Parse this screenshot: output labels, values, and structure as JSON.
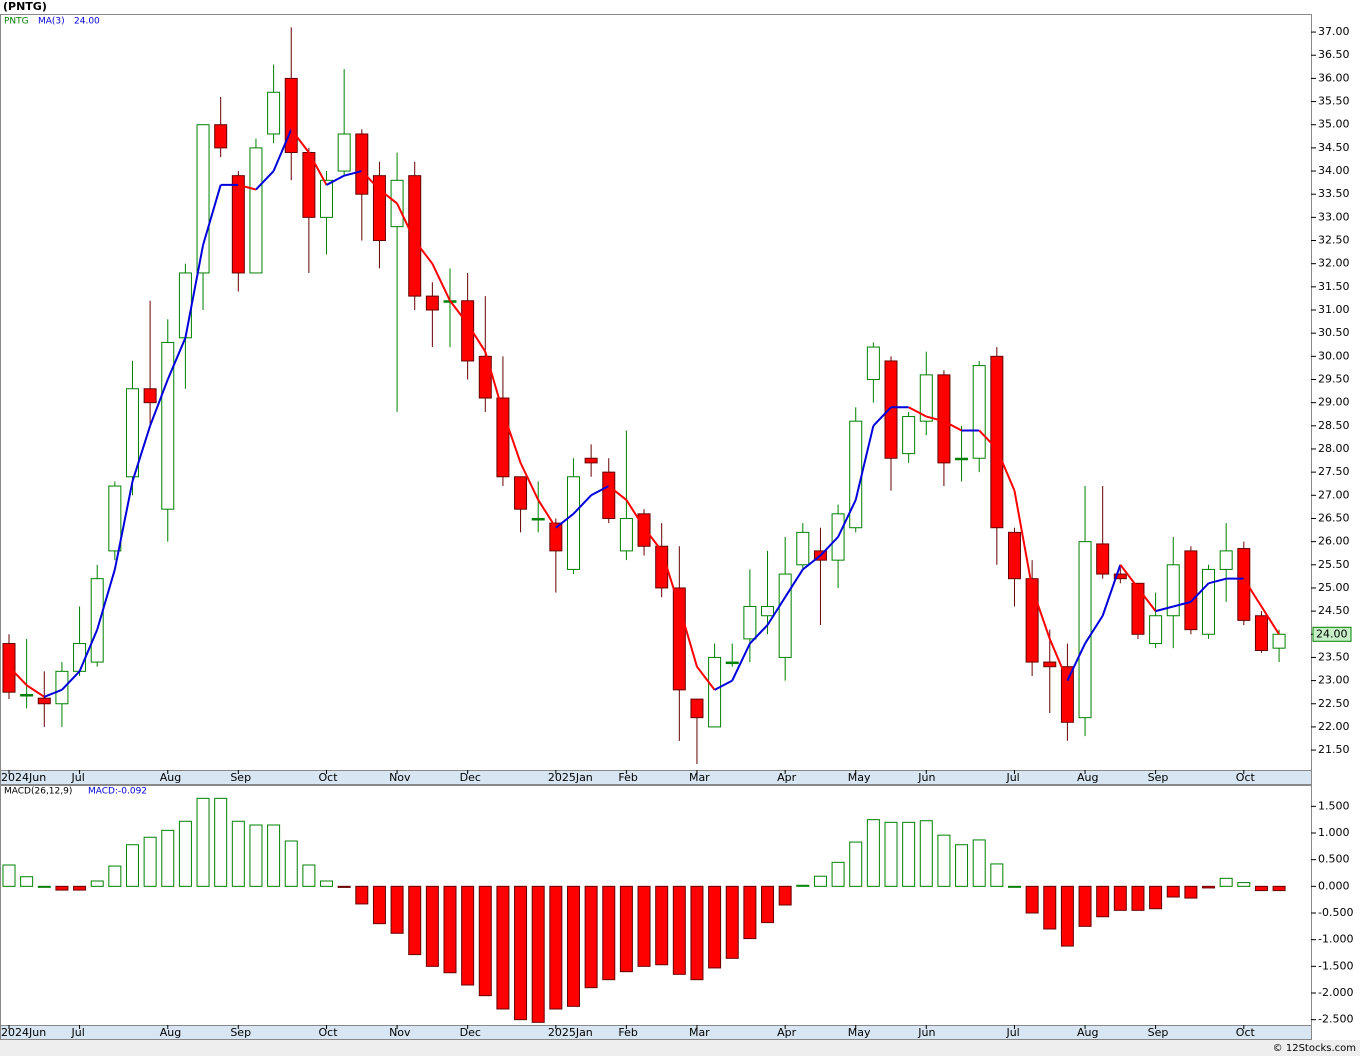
{
  "chart_data": [
    {
      "type": "candlestick",
      "title": "(PNTG)",
      "symbol": "PNTG",
      "ma_label": "MA(3)",
      "last_price": {
        "value": 24,
        "label": "24.00"
      },
      "categories": [
        "2024Jun",
        null,
        null,
        null,
        "Jul",
        null,
        null,
        null,
        null,
        "Aug",
        null,
        null,
        null,
        "Sep",
        null,
        null,
        null,
        null,
        "Oct",
        null,
        null,
        null,
        "Nov",
        null,
        null,
        null,
        "Dec",
        null,
        null,
        null,
        null,
        "2025Jan",
        null,
        null,
        null,
        "Feb",
        null,
        null,
        null,
        "Mar",
        null,
        null,
        null,
        null,
        "Apr",
        null,
        null,
        null,
        "May",
        null,
        null,
        null,
        "Jun",
        null,
        null,
        null,
        null,
        "Jul",
        null,
        null,
        null,
        "Aug",
        null,
        null,
        null,
        "Sep",
        null,
        null,
        null,
        null,
        "Oct",
        null,
        null
      ],
      "open": [
        23.8,
        22.7,
        22.62,
        22.5,
        23.2,
        23.4,
        25.8,
        27.4,
        29.3,
        26.7,
        30.4,
        31.8,
        35.0,
        33.9,
        31.8,
        34.8,
        36.0,
        34.4,
        33.0,
        34.0,
        34.8,
        33.9,
        32.8,
        33.9,
        31.3,
        31.2,
        31.2,
        30.0,
        29.1,
        27.4,
        26.5,
        26.4,
        25.4,
        27.8,
        27.5,
        25.8,
        26.6,
        25.9,
        25.0,
        22.6,
        22.0,
        23.4,
        23.9,
        24.4,
        23.5,
        25.5,
        25.8,
        25.6,
        26.3,
        29.5,
        29.9,
        27.9,
        28.6,
        29.6,
        27.8,
        27.8,
        30.0,
        26.2,
        25.2,
        23.4,
        23.3,
        22.2,
        25.95,
        25.3,
        25.1,
        23.8,
        24.4,
        25.8,
        24.0,
        25.4,
        25.85,
        24.4,
        23.7
      ],
      "high": [
        24.0,
        23.9,
        23.2,
        23.4,
        24.6,
        25.5,
        27.3,
        29.9,
        31.2,
        30.8,
        32.0,
        35.0,
        35.6,
        34.0,
        34.7,
        36.3,
        37.1,
        34.5,
        34.0,
        36.2,
        34.9,
        34.2,
        34.4,
        34.2,
        31.6,
        31.9,
        31.8,
        31.3,
        30.0,
        27.4,
        27.3,
        26.5,
        27.8,
        28.1,
        27.8,
        28.4,
        26.7,
        26.4,
        25.9,
        22.6,
        23.8,
        23.8,
        25.4,
        25.8,
        26.1,
        26.4,
        26.3,
        26.8,
        28.9,
        30.3,
        30.0,
        28.8,
        30.1,
        29.7,
        28.5,
        29.9,
        30.2,
        26.3,
        25.6,
        24.1,
        23.8,
        27.2,
        27.2,
        25.5,
        25.1,
        24.9,
        26.1,
        25.9,
        25.5,
        26.4,
        26.0,
        24.5,
        24.1
      ],
      "low": [
        22.6,
        22.4,
        22.0,
        22.0,
        23.1,
        23.3,
        25.6,
        27.0,
        28.5,
        26.0,
        29.3,
        31.0,
        34.3,
        31.4,
        31.8,
        34.6,
        33.8,
        31.8,
        32.2,
        33.9,
        32.5,
        31.9,
        28.8,
        31.0,
        30.2,
        30.2,
        29.5,
        28.8,
        27.2,
        26.2,
        26.2,
        24.9,
        25.3,
        27.4,
        26.4,
        25.6,
        25.7,
        24.8,
        21.7,
        21.2,
        22.0,
        23.3,
        23.4,
        24.0,
        23.0,
        25.4,
        24.2,
        25.0,
        26.2,
        29.0,
        27.1,
        27.7,
        28.3,
        27.2,
        27.3,
        27.5,
        25.5,
        24.6,
        23.1,
        22.3,
        21.7,
        21.8,
        25.2,
        25.1,
        23.9,
        23.7,
        23.7,
        24.0,
        23.9,
        24.7,
        24.2,
        23.6,
        23.4
      ],
      "close": [
        22.75,
        22.7,
        22.5,
        23.2,
        23.8,
        25.2,
        27.2,
        29.3,
        29.0,
        30.3,
        31.8,
        35.0,
        34.5,
        31.8,
        34.5,
        35.7,
        34.4,
        33.0,
        33.8,
        34.8,
        33.5,
        32.5,
        33.8,
        31.3,
        31.0,
        31.2,
        29.9,
        29.1,
        27.4,
        26.7,
        26.5,
        25.8,
        27.4,
        27.7,
        26.5,
        26.5,
        25.9,
        25.0,
        22.8,
        22.2,
        23.5,
        23.4,
        24.6,
        24.6,
        25.3,
        26.2,
        25.6,
        26.6,
        28.6,
        30.2,
        27.8,
        28.7,
        29.6,
        27.7,
        27.8,
        29.8,
        26.3,
        25.2,
        23.4,
        23.3,
        22.1,
        26.0,
        25.3,
        25.2,
        24.0,
        24.4,
        25.5,
        24.1,
        25.4,
        25.8,
        24.3,
        23.65,
        24.0
      ],
      "ma": [
        23.3,
        22.9,
        22.65,
        22.8,
        23.2,
        24.1,
        25.4,
        27.3,
        28.5,
        29.5,
        30.4,
        32.4,
        33.7,
        33.7,
        33.6,
        34.0,
        34.9,
        34.4,
        33.7,
        33.9,
        34.0,
        33.6,
        33.3,
        32.5,
        32.0,
        31.2,
        30.7,
        30.1,
        28.8,
        27.7,
        26.9,
        26.3,
        26.6,
        27.0,
        27.2,
        26.9,
        26.3,
        25.8,
        24.6,
        23.3,
        22.8,
        23.0,
        23.8,
        24.2,
        24.8,
        25.4,
        25.7,
        26.1,
        26.9,
        28.5,
        28.9,
        28.9,
        28.7,
        28.6,
        28.4,
        28.4,
        28.0,
        27.1,
        25.0,
        23.9,
        23.0,
        23.8,
        24.4,
        25.5,
        25.0,
        24.5,
        24.6,
        24.7,
        25.1,
        25.2,
        25.2,
        24.6,
        24.0
      ],
      "up_color": "#008000",
      "down_color": "#ff0000",
      "ma_up_color": "#0000dd",
      "ma_down_color": "#ff0000",
      "ylim": [
        21.07,
        37.39
      ],
      "yticks": [
        {
          "value": 37,
          "label": "37.00"
        },
        {
          "value": 36.5,
          "label": "36.50"
        },
        {
          "value": 36,
          "label": "36.00"
        },
        {
          "value": 35.5,
          "label": "35.50"
        },
        {
          "value": 35,
          "label": "35.00"
        },
        {
          "value": 34.5,
          "label": "34.50"
        },
        {
          "value": 34,
          "label": "34.00"
        },
        {
          "value": 33.5,
          "label": "33.50"
        },
        {
          "value": 33,
          "label": "33.00"
        },
        {
          "value": 32.5,
          "label": "32.50"
        },
        {
          "value": 32,
          "label": "32.00"
        },
        {
          "value": 31.5,
          "label": "31.50"
        },
        {
          "value": 31,
          "label": "31.00"
        },
        {
          "value": 30.5,
          "label": "30.50"
        },
        {
          "value": 30,
          "label": "30.00"
        },
        {
          "value": 29.5,
          "label": "29.50"
        },
        {
          "value": 29,
          "label": "29.00"
        },
        {
          "value": 28.5,
          "label": "28.50"
        },
        {
          "value": 28,
          "label": "28.00"
        },
        {
          "value": 27.5,
          "label": "27.50"
        },
        {
          "value": 27,
          "label": "27.00"
        },
        {
          "value": 26.5,
          "label": "26.50"
        },
        {
          "value": 26,
          "label": "26.00"
        },
        {
          "value": 25.5,
          "label": "25.50"
        },
        {
          "value": 25,
          "label": "25.00"
        },
        {
          "value": 24.5,
          "label": "24.50"
        },
        {
          "value": 24,
          "label": "24.00"
        },
        {
          "value": 23.5,
          "label": "23.50"
        },
        {
          "value": 23,
          "label": "23.00"
        },
        {
          "value": 22.5,
          "label": "22.50"
        },
        {
          "value": 22,
          "label": "22.00"
        },
        {
          "value": 21.5,
          "label": "21.50"
        }
      ]
    },
    {
      "type": "bar",
      "title": "MACD(26,12,9)",
      "value_text": "MACD:-0.092",
      "values": [
        0.4,
        0.18,
        0.0,
        -0.07,
        -0.07,
        0.1,
        0.38,
        0.78,
        0.92,
        1.05,
        1.22,
        1.65,
        1.65,
        1.22,
        1.15,
        1.15,
        0.85,
        0.4,
        0.1,
        -0.02,
        -0.33,
        -0.7,
        -0.88,
        -1.28,
        -1.5,
        -1.62,
        -1.85,
        -2.05,
        -2.3,
        -2.5,
        -2.55,
        -2.3,
        -2.25,
        -1.9,
        -1.75,
        -1.6,
        -1.5,
        -1.47,
        -1.65,
        -1.75,
        -1.53,
        -1.35,
        -0.98,
        -0.68,
        -0.35,
        0.02,
        0.19,
        0.45,
        0.83,
        1.25,
        1.2,
        1.2,
        1.23,
        0.96,
        0.78,
        0.87,
        0.42,
        0.0,
        -0.5,
        -0.8,
        -1.12,
        -0.75,
        -0.57,
        -0.45,
        -0.45,
        -0.42,
        -0.2,
        -0.22,
        -0.03,
        0.15,
        0.07,
        -0.08,
        -0.08
      ],
      "up_color": "#008000",
      "down_color": "#ff0000",
      "ylim": [
        -2.6,
        1.9
      ],
      "yticks": [
        {
          "value": 1.5,
          "label": "1.500"
        },
        {
          "value": 1,
          "label": "1.000"
        },
        {
          "value": 0.5,
          "label": "0.500"
        },
        {
          "value": 0,
          "label": "0.000"
        },
        {
          "value": -0.5,
          "label": "-0.500"
        },
        {
          "value": -1,
          "label": "-1.000"
        },
        {
          "value": -1.5,
          "label": "-1.500"
        },
        {
          "value": -2,
          "label": "-2.000"
        },
        {
          "value": -2.5,
          "label": "-2.500"
        }
      ]
    }
  ],
  "copyright": "© 12Stocks.com"
}
